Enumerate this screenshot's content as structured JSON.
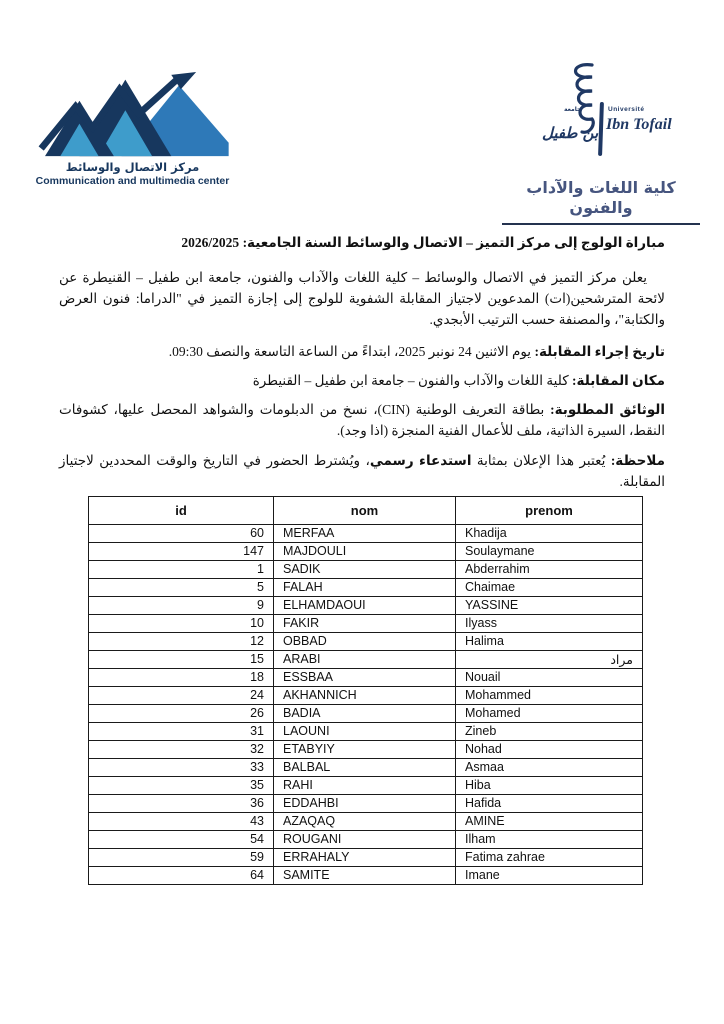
{
  "header": {
    "left_logo": {
      "title_ar": "مركز الاتصال والوسائط",
      "title_en": "Communication and multimedia center"
    },
    "right_logo": {
      "jamiaa_label": "جامعة",
      "name_calligraphy": "بن طفيل",
      "universite_label": "Université",
      "name_script": "Ibn Tofail",
      "faculty_name": "كلية اللغات والآداب والفنون"
    }
  },
  "document": {
    "title": "مباراة الولوج إلى مركز التميز – الاتصال والوسائط السنة الجامعية: 2026/2025",
    "paragraph_intro": "يعلن مركز التميز في الاتصال والوسائط – كلية اللغات والآداب والفنون، جامعة ابن طفيل – القنيطرة عن لائحة المترشحين(ات) المدعوين لاجتياز المقابلة الشفوية للولوج إلى إجازة التميز في \"الدراما: فنون العرض والكتابة\"، والمصنفة حسب الترتيب الأبجدي.",
    "date_label": "تاريخ إجراء المقابلة:",
    "date_text": " يوم الاثنين 24 نونبر 2025، ابتداءً من الساعة التاسعة والنصف 09:30.",
    "place_label": "مكان المقابلة:",
    "place_text": " كلية اللغات والآداب والفنون – جامعة ابن طفيل – القنيطرة",
    "documents_label": "الوثائق المطلوبة:",
    "documents_text": " بطاقة التعريف الوطنية (CIN)، نسخ من الدبلومات والشواهد المحصل عليها، كشوفات النقط، السيرة الذاتية، ملف للأعمال الفنية المنجزة (اذا وجد).",
    "note_label": "ملاحظة:",
    "note_text_1": " يُعتبر هذا الإعلان بمثابة ",
    "note_bold": "استدعاء رسمي",
    "note_text_2": "، ويُشترط الحضور في التاريخ والوقت المحددين لاجتياز المقابلة."
  },
  "table": {
    "headers": {
      "id": "id",
      "nom": "nom",
      "prenom": "prenom"
    },
    "rows": [
      {
        "id": "60",
        "nom": "MERFAA",
        "prenom": "Khadija"
      },
      {
        "id": "147",
        "nom": "MAJDOULI",
        "prenom": "Soulaymane"
      },
      {
        "id": "1",
        "nom": "SADIK",
        "prenom": "Abderrahim"
      },
      {
        "id": "5",
        "nom": "FALAH",
        "prenom": "Chaimae"
      },
      {
        "id": "9",
        "nom": "ELHAMDAOUI",
        "prenom": "YASSINE"
      },
      {
        "id": "10",
        "nom": "FAKIR",
        "prenom": "Ilyass"
      },
      {
        "id": "12",
        "nom": "OBBAD",
        "prenom": "Halima"
      },
      {
        "id": "15",
        "nom": "ARABI",
        "prenom": "مراد"
      },
      {
        "id": "18",
        "nom": "ESSBAA",
        "prenom": "Nouail"
      },
      {
        "id": "24",
        "nom": "AKHANNICH",
        "prenom": "Mohammed"
      },
      {
        "id": "26",
        "nom": "BADIA",
        "prenom": "Mohamed"
      },
      {
        "id": "31",
        "nom": "LAOUNI",
        "prenom": "Zineb"
      },
      {
        "id": "32",
        "nom": "ETABYIY",
        "prenom": "Nohad"
      },
      {
        "id": "33",
        "nom": "BALBAL",
        "prenom": "Asmaa"
      },
      {
        "id": "35",
        "nom": "RAHI",
        "prenom": "Hiba"
      },
      {
        "id": "36",
        "nom": "EDDAHBI",
        "prenom": "Hafida"
      },
      {
        "id": "43",
        "nom": "AZAQAQ",
        "prenom": "AMINE"
      },
      {
        "id": "54",
        "nom": "ROUGANI",
        "prenom": "Ilham"
      },
      {
        "id": "59",
        "nom": "ERRAHALY",
        "prenom": "Fatima zahrae"
      },
      {
        "id": "64",
        "nom": "SAMITE",
        "prenom": "Imane"
      }
    ]
  },
  "colors": {
    "navy": "#17375E",
    "mountain_blue": "#2E79B8",
    "mountain_light": "#3E9CCB",
    "faculty_text": "#46557F"
  }
}
